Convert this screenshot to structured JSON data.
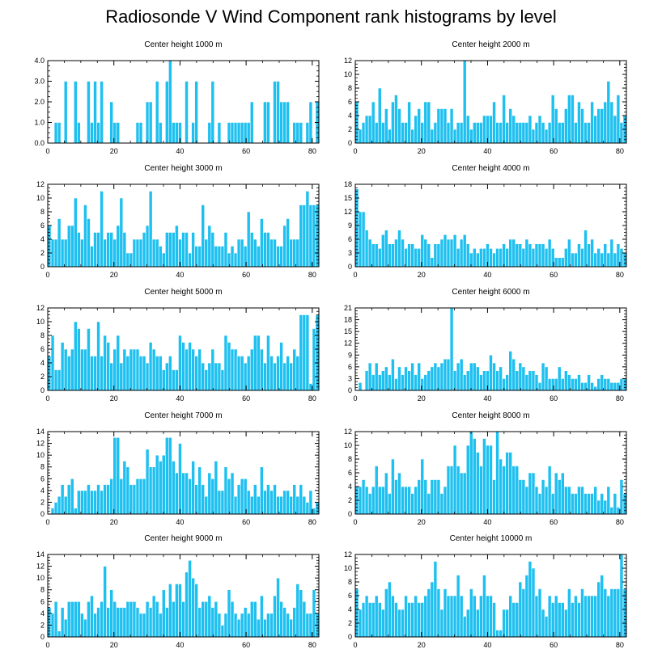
{
  "page_title": "Radiosonde V Wind Component rank histograms by level",
  "colors": {
    "bar": "#1ec0f0",
    "bar_edge": "#ffffff",
    "axis": "#000000"
  },
  "chart_data": [
    {
      "type": "bar",
      "title": "Center height 1000 m",
      "ylim": [
        0,
        4
      ],
      "yticks": [
        0,
        1,
        2,
        3,
        4
      ],
      "ytick_labels": [
        "0.0",
        "1.0",
        "2.0",
        "3.0",
        "4.0"
      ],
      "xlim": [
        0,
        82
      ],
      "xticks": [
        0,
        20,
        40,
        60,
        80
      ],
      "values": [
        0,
        0,
        1,
        1,
        0,
        3,
        0,
        0,
        3,
        1,
        0,
        0,
        3,
        1,
        3,
        1,
        3,
        0,
        0,
        2,
        1,
        1,
        0,
        0,
        0,
        0,
        0,
        1,
        1,
        0,
        2,
        2,
        0,
        3,
        1,
        0,
        3,
        4,
        1,
        1,
        1,
        0,
        3,
        0,
        1,
        3,
        0,
        0,
        0,
        1,
        3,
        0,
        1,
        0,
        0,
        1,
        1,
        1,
        1,
        1,
        1,
        1,
        2,
        0,
        0,
        0,
        2,
        2,
        0,
        3,
        3,
        2,
        2,
        2,
        0,
        1,
        1,
        1,
        0,
        1,
        2,
        0,
        2
      ]
    },
    {
      "type": "bar",
      "title": "Center height 2000 m",
      "ylim": [
        0,
        12
      ],
      "yticks": [
        0,
        2,
        4,
        6,
        8,
        10,
        12
      ],
      "ytick_labels": [
        "0",
        "2",
        "4",
        "6",
        "8",
        "10",
        "12"
      ],
      "xlim": [
        0,
        82
      ],
      "xticks": [
        0,
        20,
        40,
        60,
        80
      ],
      "values": [
        6,
        2,
        3,
        4,
        4,
        6,
        3,
        8,
        3,
        5,
        2,
        6,
        7,
        5,
        3,
        3,
        6,
        2,
        4,
        5,
        3,
        6,
        6,
        2,
        3,
        5,
        5,
        5,
        3,
        5,
        2,
        3,
        3,
        12,
        4,
        2,
        3,
        3,
        3,
        4,
        4,
        4,
        6,
        3,
        3,
        7,
        3,
        5,
        4,
        3,
        3,
        3,
        3,
        4,
        2,
        3,
        4,
        3,
        2,
        3,
        7,
        5,
        3,
        3,
        5,
        7,
        7,
        3,
        6,
        5,
        3,
        3,
        6,
        4,
        5,
        5,
        6,
        9,
        6,
        4,
        7,
        3,
        4
      ]
    },
    {
      "type": "bar",
      "title": "Center height 3000 m",
      "ylim": [
        0,
        12
      ],
      "yticks": [
        0,
        2,
        4,
        6,
        8,
        10,
        12
      ],
      "ytick_labels": [
        "0",
        "2",
        "4",
        "6",
        "8",
        "10",
        "12"
      ],
      "xlim": [
        0,
        82
      ],
      "xticks": [
        0,
        20,
        40,
        60,
        80
      ],
      "values": [
        6,
        4,
        4,
        7,
        4,
        4,
        6,
        6,
        10,
        5,
        4,
        9,
        7,
        3,
        5,
        5,
        11,
        4,
        5,
        5,
        4,
        6,
        10,
        5,
        2,
        2,
        4,
        4,
        4,
        5,
        6,
        11,
        4,
        4,
        3,
        2,
        5,
        5,
        5,
        6,
        4,
        5,
        5,
        2,
        5,
        3,
        3,
        9,
        4,
        6,
        5,
        3,
        3,
        3,
        5,
        2,
        3,
        2,
        4,
        4,
        3,
        8,
        5,
        4,
        3,
        7,
        5,
        5,
        4,
        4,
        3,
        3,
        6,
        7,
        4,
        4,
        4,
        9,
        9,
        11,
        9,
        9,
        9
      ]
    },
    {
      "type": "bar",
      "title": "Center height 4000 m",
      "ylim": [
        0,
        18
      ],
      "yticks": [
        0,
        3,
        6,
        9,
        12,
        15,
        18
      ],
      "ytick_labels": [
        "0",
        "3",
        "6",
        "9",
        "12",
        "15",
        "18"
      ],
      "xlim": [
        0,
        82
      ],
      "xticks": [
        0,
        20,
        40,
        60,
        80
      ],
      "values": [
        17,
        12,
        12,
        8,
        6,
        5,
        5,
        4,
        7,
        8,
        5,
        5,
        6,
        8,
        6,
        4,
        5,
        5,
        4,
        4,
        7,
        6,
        5,
        2,
        5,
        5,
        6,
        7,
        6,
        6,
        7,
        4,
        6,
        7,
        5,
        3,
        4,
        3,
        4,
        4,
        5,
        4,
        3,
        4,
        4,
        5,
        4,
        6,
        6,
        5,
        5,
        4,
        6,
        5,
        4,
        5,
        5,
        5,
        4,
        6,
        4,
        2,
        2,
        2,
        4,
        6,
        3,
        3,
        5,
        4,
        8,
        5,
        6,
        3,
        4,
        3,
        5,
        3,
        6,
        3,
        5,
        4,
        3
      ]
    },
    {
      "type": "bar",
      "title": "Center height 5000 m",
      "ylim": [
        0,
        12
      ],
      "yticks": [
        0,
        2,
        4,
        6,
        8,
        10,
        12
      ],
      "ytick_labels": [
        "0",
        "2",
        "4",
        "6",
        "8",
        "10",
        "12"
      ],
      "xlim": [
        0,
        82
      ],
      "xticks": [
        0,
        20,
        40,
        60,
        80
      ],
      "values": [
        5,
        8,
        3,
        3,
        7,
        6,
        5,
        6,
        10,
        9,
        6,
        6,
        9,
        5,
        5,
        10,
        5,
        8,
        7,
        4,
        6,
        8,
        4,
        6,
        5,
        6,
        6,
        6,
        5,
        5,
        4,
        7,
        6,
        5,
        5,
        3,
        4,
        5,
        3,
        3,
        8,
        7,
        6,
        7,
        6,
        5,
        6,
        4,
        3,
        4,
        6,
        4,
        4,
        3,
        8,
        7,
        6,
        6,
        5,
        5,
        4,
        5,
        6,
        8,
        8,
        6,
        4,
        8,
        5,
        4,
        5,
        7,
        4,
        5,
        4,
        6,
        5,
        11,
        11,
        11,
        1,
        9,
        11
      ]
    },
    {
      "type": "bar",
      "title": "Center height 6000 m",
      "ylim": [
        0,
        21
      ],
      "yticks": [
        0,
        3,
        6,
        9,
        12,
        15,
        18,
        21
      ],
      "ytick_labels": [
        "0",
        "3",
        "6",
        "9",
        "12",
        "15",
        "18",
        "21"
      ],
      "xlim": [
        0,
        82
      ],
      "xticks": [
        0,
        20,
        40,
        60,
        80
      ],
      "values": [
        0,
        2,
        0,
        5,
        7,
        4,
        7,
        4,
        5,
        6,
        4,
        8,
        3,
        6,
        4,
        6,
        5,
        7,
        4,
        7,
        3,
        4,
        5,
        6,
        7,
        6,
        7,
        8,
        8,
        21,
        5,
        7,
        8,
        4,
        5,
        7,
        7,
        6,
        4,
        5,
        5,
        9,
        7,
        5,
        6,
        3,
        4,
        10,
        8,
        5,
        7,
        6,
        4,
        5,
        5,
        4,
        2,
        7,
        6,
        3,
        3,
        3,
        6,
        3,
        5,
        4,
        3,
        3,
        4,
        2,
        2,
        4,
        2,
        1,
        3,
        4,
        3,
        3,
        2,
        2,
        2,
        3,
        3
      ]
    },
    {
      "type": "bar",
      "title": "Center height 7000 m",
      "ylim": [
        0,
        14
      ],
      "yticks": [
        0,
        2,
        4,
        6,
        8,
        10,
        12,
        14
      ],
      "ytick_labels": [
        "0",
        "2",
        "4",
        "6",
        "8",
        "10",
        "12",
        "14"
      ],
      "xlim": [
        0,
        82
      ],
      "xticks": [
        0,
        20,
        40,
        60,
        80
      ],
      "values": [
        0,
        1,
        2,
        3,
        5,
        3,
        5,
        6,
        1,
        4,
        4,
        4,
        5,
        4,
        4,
        5,
        4,
        5,
        5,
        6,
        13,
        13,
        6,
        9,
        8,
        5,
        5,
        6,
        6,
        6,
        11,
        8,
        8,
        10,
        9,
        10,
        13,
        13,
        9,
        7,
        12,
        7,
        7,
        6,
        9,
        5,
        8,
        5,
        3,
        7,
        6,
        9,
        4,
        4,
        8,
        6,
        7,
        3,
        5,
        6,
        6,
        4,
        3,
        5,
        3,
        8,
        4,
        5,
        4,
        5,
        3,
        3,
        4,
        4,
        3,
        5,
        3,
        5,
        3,
        2,
        4,
        1,
        2
      ]
    },
    {
      "type": "bar",
      "title": "Center height 8000 m",
      "ylim": [
        0,
        12
      ],
      "yticks": [
        0,
        2,
        4,
        6,
        8,
        10,
        12
      ],
      "ytick_labels": [
        "0",
        "2",
        "4",
        "6",
        "8",
        "10",
        "12"
      ],
      "xlim": [
        0,
        82
      ],
      "xticks": [
        0,
        20,
        40,
        60,
        80
      ],
      "values": [
        4,
        4,
        5,
        4,
        3,
        4,
        7,
        4,
        4,
        6,
        3,
        8,
        5,
        6,
        4,
        4,
        4,
        3,
        4,
        5,
        8,
        5,
        3,
        5,
        5,
        5,
        3,
        4,
        7,
        7,
        10,
        7,
        6,
        6,
        10,
        12,
        11,
        9,
        7,
        11,
        10,
        10,
        5,
        12,
        8,
        7,
        9,
        9,
        7,
        7,
        5,
        5,
        4,
        6,
        6,
        4,
        3,
        5,
        4,
        7,
        3,
        6,
        5,
        6,
        4,
        4,
        3,
        3,
        4,
        4,
        3,
        3,
        3,
        4,
        2,
        3,
        2,
        4,
        1,
        3,
        1,
        5,
        3
      ]
    },
    {
      "type": "bar",
      "title": "Center height 9000 m",
      "ylim": [
        0,
        14
      ],
      "yticks": [
        0,
        2,
        4,
        6,
        8,
        10,
        12,
        14
      ],
      "ytick_labels": [
        "0",
        "2",
        "4",
        "6",
        "8",
        "10",
        "12",
        "14"
      ],
      "xlim": [
        0,
        82
      ],
      "xticks": [
        0,
        20,
        40,
        60,
        80
      ],
      "values": [
        5,
        4,
        6,
        1,
        5,
        3,
        6,
        6,
        6,
        6,
        4,
        3,
        6,
        7,
        4,
        5,
        6,
        12,
        5,
        8,
        6,
        5,
        5,
        5,
        6,
        6,
        6,
        5,
        4,
        4,
        6,
        5,
        7,
        6,
        4,
        8,
        5,
        9,
        6,
        9,
        9,
        6,
        11,
        13,
        10,
        9,
        5,
        6,
        6,
        7,
        5,
        6,
        4,
        2,
        4,
        8,
        6,
        4,
        3,
        4,
        5,
        4,
        6,
        6,
        3,
        7,
        3,
        4,
        4,
        7,
        10,
        6,
        5,
        4,
        3,
        5,
        9,
        8,
        6,
        4,
        4,
        8,
        4
      ]
    },
    {
      "type": "bar",
      "title": "Center height 10000 m",
      "ylim": [
        0,
        12
      ],
      "yticks": [
        0,
        2,
        4,
        6,
        8,
        10,
        12
      ],
      "ytick_labels": [
        "0",
        "2",
        "4",
        "6",
        "8",
        "10",
        "12"
      ],
      "xlim": [
        0,
        82
      ],
      "xticks": [
        0,
        20,
        40,
        60,
        80
      ],
      "values": [
        7,
        4,
        5,
        6,
        5,
        5,
        6,
        5,
        4,
        7,
        8,
        6,
        5,
        4,
        4,
        6,
        5,
        5,
        6,
        5,
        5,
        6,
        7,
        8,
        11,
        7,
        4,
        7,
        6,
        6,
        6,
        9,
        6,
        3,
        4,
        7,
        6,
        4,
        6,
        9,
        6,
        6,
        5,
        1,
        1,
        4,
        4,
        6,
        5,
        5,
        8,
        7,
        9,
        11,
        10,
        6,
        7,
        4,
        3,
        6,
        5,
        6,
        5,
        5,
        4,
        7,
        5,
        6,
        5,
        7,
        6,
        6,
        6,
        6,
        8,
        9,
        7,
        6,
        7,
        7,
        7,
        12,
        7
      ]
    }
  ]
}
